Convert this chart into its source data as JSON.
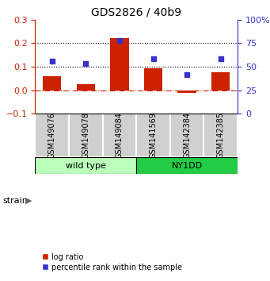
{
  "title": "GDS2826 / 40b9",
  "samples": [
    "GSM149076",
    "GSM149078",
    "GSM149084",
    "GSM141569",
    "GSM142384",
    "GSM142385"
  ],
  "log_ratio": [
    0.06,
    0.025,
    0.22,
    0.095,
    -0.01,
    0.075
  ],
  "percentile_rank_left": [
    0.125,
    0.115,
    0.21,
    0.135,
    0.068,
    0.135
  ],
  "ylim_left": [
    -0.1,
    0.3
  ],
  "ylim_right": [
    0,
    100
  ],
  "yticks_left": [
    -0.1,
    0.0,
    0.1,
    0.2,
    0.3
  ],
  "yticks_right": [
    0,
    25,
    50,
    75,
    100
  ],
  "hlines": [
    0.1,
    0.2
  ],
  "bar_color": "#cc2200",
  "dot_color": "#3333cc",
  "zero_line_color": "#cc2200",
  "groups": [
    {
      "label": "wild type",
      "start": 0,
      "end": 3,
      "color": "#bbffbb"
    },
    {
      "label": "NY1DD",
      "start": 3,
      "end": 6,
      "color": "#22cc44"
    }
  ],
  "strain_label": "strain",
  "legend_bar": "log ratio",
  "legend_dot": "percentile rank within the sample",
  "title_fontsize": 10,
  "tick_fontsize": 8,
  "label_fontsize": 7
}
